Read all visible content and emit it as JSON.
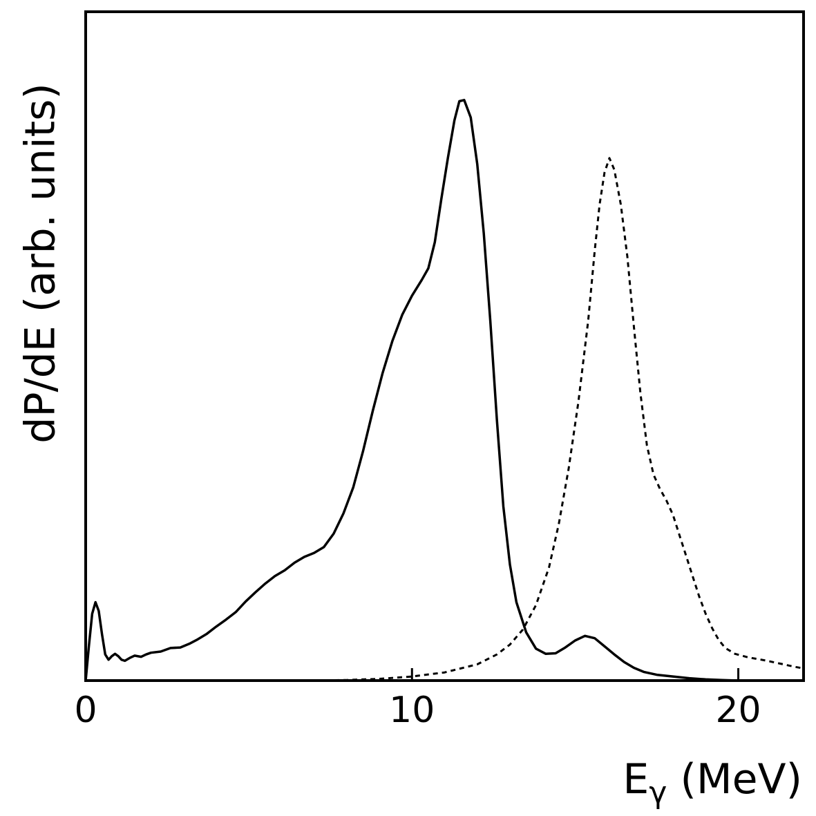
{
  "chart_data": {
    "type": "line",
    "title": "",
    "xlabel": {
      "main": "E",
      "subscript": "γ",
      "unit": " (MeV)"
    },
    "ylabel": "dP/dE (arb. units)",
    "xlim": [
      0,
      22
    ],
    "ylim": [
      0,
      100
    ],
    "xticks": [
      0,
      10,
      20
    ],
    "xtick_labels": [
      "0",
      "10",
      "20"
    ],
    "grid": false,
    "legend": "none",
    "series": [
      {
        "style": "solid",
        "color": "#000000",
        "points": [
          [
            0.0,
            0.0
          ],
          [
            0.1,
            6.0
          ],
          [
            0.2,
            11.5
          ],
          [
            0.3,
            13.5
          ],
          [
            0.4,
            12.0
          ],
          [
            0.5,
            8.0
          ],
          [
            0.6,
            4.5
          ],
          [
            0.7,
            3.6
          ],
          [
            0.8,
            4.2
          ],
          [
            0.9,
            4.6
          ],
          [
            1.0,
            4.2
          ],
          [
            1.1,
            3.6
          ],
          [
            1.2,
            3.4
          ],
          [
            1.35,
            3.9
          ],
          [
            1.5,
            4.3
          ],
          [
            1.7,
            4.1
          ],
          [
            1.85,
            4.5
          ],
          [
            2.0,
            4.8
          ],
          [
            2.3,
            5.0
          ],
          [
            2.6,
            5.6
          ],
          [
            2.9,
            5.7
          ],
          [
            3.2,
            6.4
          ],
          [
            3.4,
            7.0
          ],
          [
            3.7,
            8.0
          ],
          [
            4.0,
            9.3
          ],
          [
            4.3,
            10.5
          ],
          [
            4.6,
            11.8
          ],
          [
            4.9,
            13.6
          ],
          [
            5.2,
            15.2
          ],
          [
            5.5,
            16.7
          ],
          [
            5.8,
            18.0
          ],
          [
            6.1,
            19.0
          ],
          [
            6.4,
            20.3
          ],
          [
            6.7,
            21.3
          ],
          [
            7.0,
            22.0
          ],
          [
            7.3,
            23.0
          ],
          [
            7.6,
            25.3
          ],
          [
            7.9,
            28.8
          ],
          [
            8.2,
            33.3
          ],
          [
            8.5,
            39.5
          ],
          [
            8.8,
            46.5
          ],
          [
            9.1,
            53.0
          ],
          [
            9.4,
            58.5
          ],
          [
            9.7,
            63.0
          ],
          [
            10.0,
            66.3
          ],
          [
            10.3,
            69.0
          ],
          [
            10.5,
            71.0
          ],
          [
            10.7,
            75.5
          ],
          [
            10.9,
            83.0
          ],
          [
            11.1,
            90.0
          ],
          [
            11.3,
            96.5
          ],
          [
            11.45,
            99.8
          ],
          [
            11.6,
            100.0
          ],
          [
            11.8,
            97.0
          ],
          [
            12.0,
            89.0
          ],
          [
            12.2,
            77.0
          ],
          [
            12.4,
            62.0
          ],
          [
            12.6,
            45.0
          ],
          [
            12.8,
            30.0
          ],
          [
            13.0,
            20.0
          ],
          [
            13.2,
            13.5
          ],
          [
            13.5,
            8.3
          ],
          [
            13.8,
            5.5
          ],
          [
            14.1,
            4.6
          ],
          [
            14.4,
            4.7
          ],
          [
            14.7,
            5.7
          ],
          [
            15.0,
            6.9
          ],
          [
            15.3,
            7.7
          ],
          [
            15.6,
            7.3
          ],
          [
            15.9,
            5.9
          ],
          [
            16.2,
            4.5
          ],
          [
            16.5,
            3.2
          ],
          [
            16.8,
            2.2
          ],
          [
            17.1,
            1.5
          ],
          [
            17.5,
            1.0
          ],
          [
            18.0,
            0.7
          ],
          [
            18.5,
            0.4
          ],
          [
            19.0,
            0.2
          ],
          [
            19.5,
            0.1
          ],
          [
            20.0,
            0.0
          ]
        ]
      },
      {
        "style": "dashed",
        "color": "#000000",
        "points": [
          [
            6.8,
            0.0
          ],
          [
            8.0,
            0.1
          ],
          [
            9.0,
            0.3
          ],
          [
            10.0,
            0.7
          ],
          [
            11.0,
            1.4
          ],
          [
            12.0,
            2.8
          ],
          [
            12.6,
            4.5
          ],
          [
            13.0,
            6.2
          ],
          [
            13.4,
            8.8
          ],
          [
            13.8,
            13.0
          ],
          [
            14.2,
            19.5
          ],
          [
            14.5,
            27.0
          ],
          [
            14.8,
            36.5
          ],
          [
            15.1,
            48.0
          ],
          [
            15.4,
            62.0
          ],
          [
            15.6,
            74.0
          ],
          [
            15.75,
            82.0
          ],
          [
            15.9,
            87.5
          ],
          [
            16.05,
            90.0
          ],
          [
            16.2,
            88.0
          ],
          [
            16.4,
            82.0
          ],
          [
            16.6,
            73.0
          ],
          [
            16.8,
            61.0
          ],
          [
            17.0,
            49.5
          ],
          [
            17.2,
            40.5
          ],
          [
            17.4,
            35.5
          ],
          [
            17.6,
            33.0
          ],
          [
            17.8,
            31.0
          ],
          [
            18.0,
            28.5
          ],
          [
            18.2,
            25.0
          ],
          [
            18.4,
            21.5
          ],
          [
            18.6,
            18.0
          ],
          [
            18.8,
            14.5
          ],
          [
            19.0,
            11.5
          ],
          [
            19.2,
            9.0
          ],
          [
            19.4,
            7.0
          ],
          [
            19.6,
            5.6
          ],
          [
            19.9,
            4.6
          ],
          [
            20.3,
            4.0
          ],
          [
            20.8,
            3.5
          ],
          [
            21.3,
            2.9
          ],
          [
            21.7,
            2.4
          ],
          [
            22.0,
            2.1
          ]
        ]
      }
    ]
  }
}
